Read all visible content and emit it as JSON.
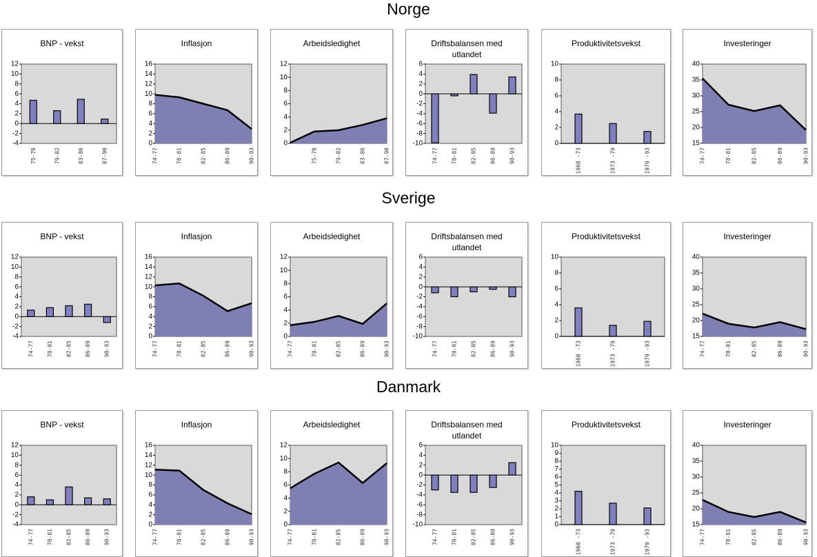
{
  "section_titles": [
    "Norge",
    "Sverige",
    "Danmark"
  ],
  "chart_data": [
    {
      "type": "bar",
      "title": "BNP - vekst",
      "categories": [
        "75-78",
        "79-82",
        "83-86",
        "87-90"
      ],
      "values": [
        4.7,
        2.6,
        4.9,
        0.9
      ],
      "color": "#8080c0",
      "ylim": [
        -4,
        12
      ],
      "yticks": [
        -4,
        -2,
        0,
        2,
        4,
        6,
        8,
        10,
        12
      ]
    },
    {
      "type": "area",
      "title": "Inflasjon",
      "categories": [
        "74-77",
        "78-81",
        "82-85",
        "86-89",
        "90-93"
      ],
      "values": [
        9.8,
        9.3,
        8.0,
        6.7,
        2.9
      ],
      "color": "#7f7fb3",
      "ylim": [
        0,
        16
      ],
      "yticks": [
        0,
        2,
        4,
        6,
        8,
        10,
        12,
        14,
        16
      ]
    },
    {
      "type": "area",
      "title": "Arbeidsledighet",
      "categories": [
        null,
        "75-78",
        "79-82",
        "83-86",
        "87-90"
      ],
      "values": [
        0.1,
        1.8,
        2.0,
        2.8,
        3.8
      ],
      "color": "#7f7fb3",
      "ylim": [
        0,
        12
      ],
      "yticks": [
        0,
        2,
        4,
        6,
        8,
        10,
        12
      ]
    },
    {
      "type": "bar",
      "title": "Driftsbalansen med utlandet",
      "categories": [
        "74-77",
        "78-81",
        "82-85",
        "86-89",
        "90-93"
      ],
      "values": [
        -9.9,
        -0.4,
        3.9,
        -3.9,
        3.4
      ],
      "color": "#8080c0",
      "ylim": [
        -10,
        6
      ],
      "yticks": [
        -10,
        -8,
        -6,
        -4,
        -2,
        0,
        2,
        4,
        6
      ]
    },
    {
      "type": "bar",
      "title": "Produktivitetsvekst",
      "categories": [
        "1960 -73",
        "1973 -79",
        "1979 -93"
      ],
      "values": [
        3.7,
        2.5,
        1.5
      ],
      "color": "#8080c0",
      "ylim": [
        0,
        10
      ],
      "yticks": [
        0,
        2,
        4,
        6,
        8,
        10
      ]
    },
    {
      "type": "area",
      "title": "Investeringer",
      "categories": [
        "74-77",
        "78-81",
        "82-85",
        "86-89",
        "90-93"
      ],
      "values": [
        35.5,
        27.2,
        25.2,
        27.0,
        19.2
      ],
      "color": "#7f7fb3",
      "ylim": [
        15,
        40
      ],
      "yticks": [
        15,
        20,
        25,
        30,
        35,
        40
      ]
    },
    {
      "type": "bar",
      "title": "BNP - vekst",
      "categories": [
        "74-77",
        "78-81",
        "82-85",
        "86-89",
        "90-93"
      ],
      "values": [
        1.3,
        1.8,
        2.2,
        2.5,
        -1.2
      ],
      "color": "#8080c0",
      "ylim": [
        -4,
        12
      ],
      "yticks": [
        -4,
        -2,
        0,
        2,
        4,
        6,
        8,
        10,
        12
      ]
    },
    {
      "type": "area",
      "title": "Inflasjon",
      "categories": [
        "74-77",
        "78-81",
        "82-85",
        "86-89",
        "90-93"
      ],
      "values": [
        10.3,
        10.7,
        8.2,
        5.1,
        6.7
      ],
      "color": "#7f7fb3",
      "ylim": [
        0,
        16
      ],
      "yticks": [
        0,
        2,
        4,
        6,
        8,
        10,
        12,
        14,
        16
      ]
    },
    {
      "type": "area",
      "title": "Arbeidsledighet",
      "categories": [
        "74-77",
        "78-81",
        "82-85",
        "86-89",
        "90-93"
      ],
      "values": [
        1.7,
        2.2,
        3.1,
        1.9,
        5.0
      ],
      "color": "#7f7fb3",
      "ylim": [
        0,
        12
      ],
      "yticks": [
        0,
        2,
        4,
        6,
        8,
        10,
        12
      ]
    },
    {
      "type": "bar",
      "title": "Driftsbalansen med utlandet",
      "categories": [
        "74-77",
        "78-81",
        "82-85",
        "86-89",
        "90-93"
      ],
      "values": [
        -1.2,
        -2.0,
        -1.0,
        -0.5,
        -2.0
      ],
      "color": "#8080c0",
      "ylim": [
        -10,
        6
      ],
      "yticks": [
        -10,
        -8,
        -6,
        -4,
        -2,
        0,
        2,
        4,
        6
      ]
    },
    {
      "type": "bar",
      "title": "Produktivitetsvekst",
      "categories": [
        "1960 -73",
        "1973 -79",
        "1979 -93"
      ],
      "values": [
        3.6,
        1.4,
        1.9
      ],
      "color": "#8080c0",
      "ylim": [
        0,
        10
      ],
      "yticks": [
        0,
        2,
        4,
        6,
        8,
        10
      ]
    },
    {
      "type": "area",
      "title": "Investeringer",
      "categories": [
        "74-77",
        "78-81",
        "82-85",
        "86-89",
        "90-93"
      ],
      "values": [
        22.2,
        19.0,
        17.8,
        19.5,
        17.3
      ],
      "color": "#7f7fb3",
      "ylim": [
        15,
        40
      ],
      "yticks": [
        15,
        20,
        25,
        30,
        35,
        40
      ]
    },
    {
      "type": "bar",
      "title": "BNP - vekst",
      "categories": [
        "74-77",
        "78-81",
        "82-85",
        "86-89",
        "90-93"
      ],
      "values": [
        1.6,
        1.0,
        3.6,
        1.4,
        1.2
      ],
      "color": "#8080c0",
      "ylim": [
        -4,
        12
      ],
      "yticks": [
        -4,
        -2,
        0,
        2,
        4,
        6,
        8,
        10,
        12
      ]
    },
    {
      "type": "area",
      "title": "Inflasjon",
      "categories": [
        "74-77",
        "78-81",
        "82-85",
        "86-89",
        "90-93"
      ],
      "values": [
        11.1,
        10.9,
        7.0,
        4.3,
        2.1
      ],
      "color": "#7f7fb3",
      "ylim": [
        0,
        16
      ],
      "yticks": [
        0,
        2,
        4,
        6,
        8,
        10,
        12,
        14,
        16
      ]
    },
    {
      "type": "area",
      "title": "Arbeidsledighet",
      "categories": [
        "74-77",
        "78-81",
        "82-85",
        "86-89",
        "90-93"
      ],
      "values": [
        5.5,
        7.7,
        9.4,
        6.3,
        9.3
      ],
      "color": "#7f7fb3",
      "ylim": [
        0,
        12
      ],
      "yticks": [
        0,
        2,
        4,
        6,
        8,
        10,
        12
      ]
    },
    {
      "type": "bar",
      "title": "Driftsbalansen med utlandet",
      "categories": [
        "74-77",
        "78-81",
        "82-85",
        "86-89",
        "90-93"
      ],
      "values": [
        -3.0,
        -3.5,
        -3.5,
        -2.5,
        2.5
      ],
      "color": "#8080c0",
      "ylim": [
        -10,
        6
      ],
      "yticks": [
        -10,
        -8,
        -6,
        -4,
        -2,
        0,
        2,
        4,
        6
      ]
    },
    {
      "type": "bar",
      "title": "Produktivitetsvekst",
      "categories": [
        "1960 -73",
        "1973 -79",
        "1979 -93"
      ],
      "values": [
        4.2,
        2.7,
        2.1
      ],
      "color": "#8080c0",
      "ylim": [
        0,
        10
      ],
      "yticks": [
        0,
        1,
        2,
        3,
        4,
        5,
        6,
        7,
        8,
        9,
        10
      ]
    },
    {
      "type": "area",
      "title": "Investeringer",
      "categories": [
        "74-77",
        "78-81",
        "82-85",
        "86-89",
        "90-93"
      ],
      "values": [
        22.8,
        19.0,
        17.4,
        19.0,
        15.7
      ],
      "color": "#7f7fb3",
      "ylim": [
        15,
        40
      ],
      "yticks": [
        15,
        20,
        25,
        30,
        35,
        40
      ]
    }
  ]
}
